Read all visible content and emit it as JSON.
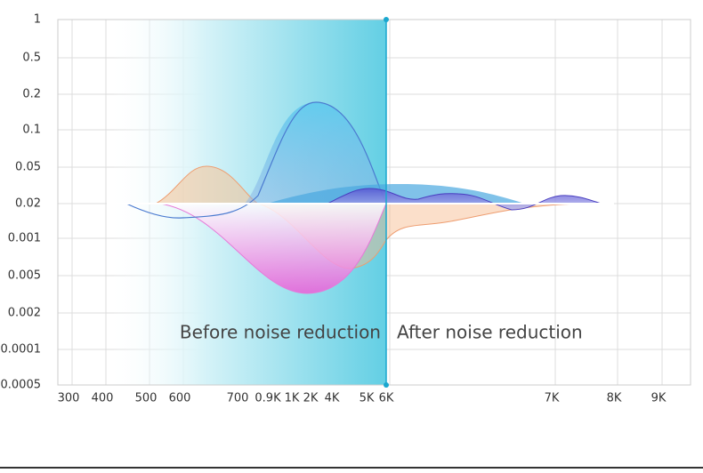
{
  "chart_data": {
    "type": "area",
    "y_labels": [
      "1",
      "0.5",
      "0.2",
      "0.1",
      "0.05",
      "0.02",
      "0.001",
      "0.005",
      "0.002",
      "0.0001",
      "0.0005"
    ],
    "x_labels": [
      "300",
      "400",
      "500",
      "600",
      "700",
      "0.9K",
      "1K",
      "2K",
      "4K",
      "5K",
      "6K",
      "7K",
      "8K",
      "9K"
    ],
    "annotations": [
      "Before noise reduction",
      "After noise reduction"
    ]
  }
}
